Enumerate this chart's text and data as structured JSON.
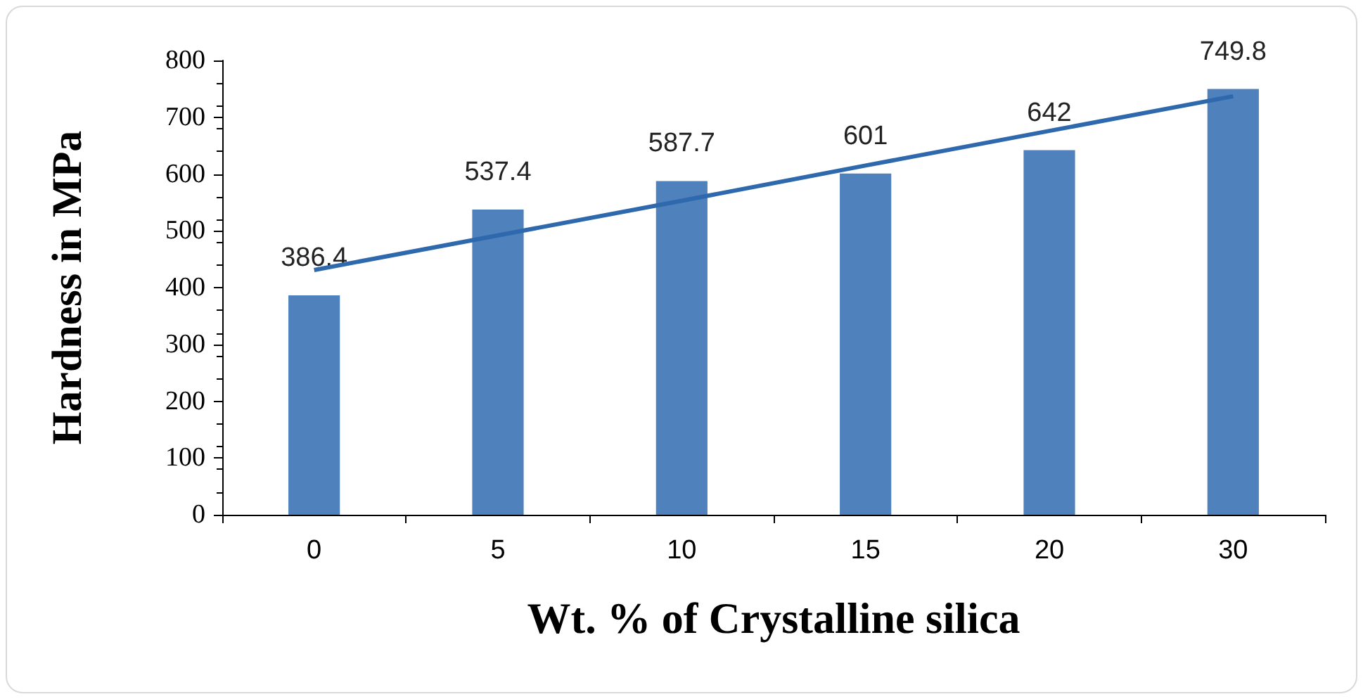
{
  "chart_data": {
    "type": "bar",
    "xlabel": "Wt. % of Crystalline silica",
    "ylabel": "Hardness in MPa",
    "categories": [
      "0",
      "5",
      "10",
      "15",
      "20",
      "30"
    ],
    "series": [
      {
        "color": "#4f81bd",
        "values": [
          386.4,
          537.4,
          587.7,
          601,
          642,
          749.8
        ],
        "value_labels": [
          "386.4",
          "537.4",
          "587.7",
          "601",
          "642",
          "749.8"
        ]
      },
      {
        "type": "line",
        "color": "#2f69ad",
        "values": [
          431,
          492,
          553,
          615,
          676,
          737
        ],
        "marker": "none"
      }
    ],
    "ylim": [
      0,
      800
    ],
    "yticks": [
      0,
      100,
      200,
      300,
      400,
      500,
      600,
      700,
      800
    ],
    "grid": false
  }
}
